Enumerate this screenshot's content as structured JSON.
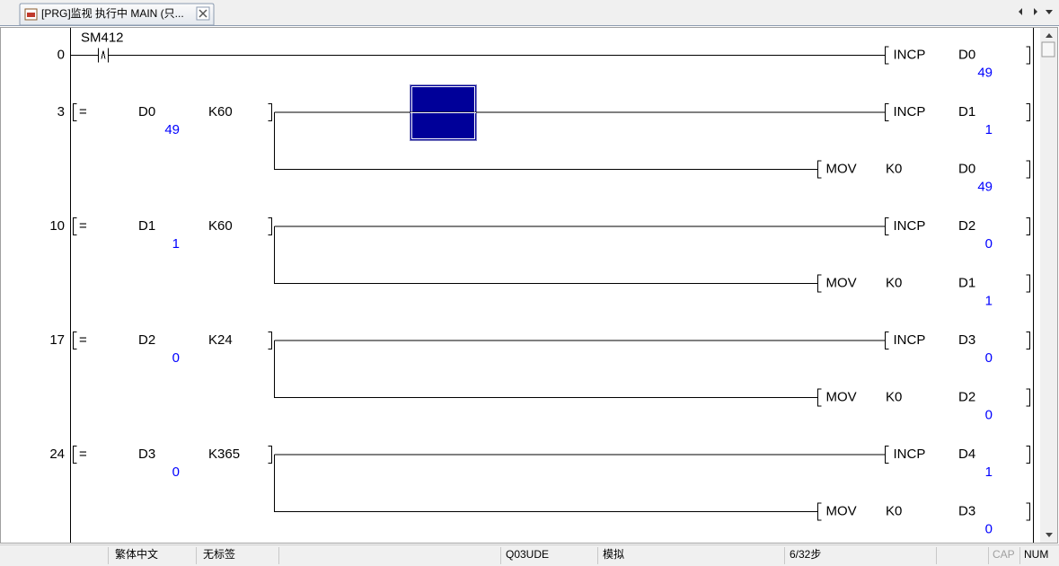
{
  "tab": {
    "title": "[PRG]监视 执行中 MAIN (只..."
  },
  "rungs": [
    {
      "step": 0,
      "contact": "SM412",
      "outputs": [
        {
          "instruction": "INCP",
          "operand": "D0",
          "value": 49
        }
      ]
    },
    {
      "step": 3,
      "compare": {
        "operator": "=",
        "device": "D0",
        "value": 49,
        "constant": "K60"
      },
      "outputs": [
        {
          "instruction": "INCP",
          "operand": "D1",
          "value": 1
        },
        {
          "instruction": "MOV",
          "source": "K0",
          "operand": "D0",
          "value": 49
        }
      ]
    },
    {
      "step": 10,
      "compare": {
        "operator": "=",
        "device": "D1",
        "value": 1,
        "constant": "K60"
      },
      "outputs": [
        {
          "instruction": "INCP",
          "operand": "D2",
          "value": 0
        },
        {
          "instruction": "MOV",
          "source": "K0",
          "operand": "D1",
          "value": 1
        }
      ]
    },
    {
      "step": 17,
      "compare": {
        "operator": "=",
        "device": "D2",
        "value": 0,
        "constant": "K24"
      },
      "outputs": [
        {
          "instruction": "INCP",
          "operand": "D3",
          "value": 0
        },
        {
          "instruction": "MOV",
          "source": "K0",
          "operand": "D2",
          "value": 0
        }
      ]
    },
    {
      "step": 24,
      "compare": {
        "operator": "=",
        "device": "D3",
        "value": 0,
        "constant": "K365"
      },
      "outputs": [
        {
          "instruction": "INCP",
          "operand": "D4",
          "value": 1
        },
        {
          "instruction": "MOV",
          "source": "K0",
          "operand": "D3",
          "value": 0
        }
      ]
    }
  ],
  "status_bar": {
    "language": "繁体中文",
    "label": "无标签",
    "cpu": "Q03UDE",
    "mode": "模拟",
    "steps": "6/32步",
    "cap": "CAP",
    "num": "NUM"
  }
}
